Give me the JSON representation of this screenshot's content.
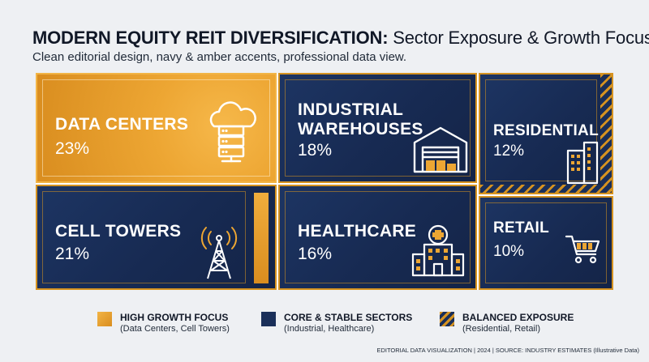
{
  "header": {
    "title_strong": "MODERN EQUITY REIT DIVERSIFICATION:",
    "title_rest": " Sector Exposure & Growth Focus",
    "subtitle": "Clean editorial design, navy & amber accents, professional data view."
  },
  "chart_data": {
    "type": "treemap",
    "title": "MODERN EQUITY REIT DIVERSIFICATION: Sector Exposure & Growth Focus",
    "unit": "%",
    "tiles": [
      {
        "label": "DATA CENTERS",
        "value_label": "23%",
        "value": 23,
        "group": "High Growth Focus",
        "icon": "cloud-server-icon"
      },
      {
        "label": "INDUSTRIAL\nWAREHOUSES",
        "value_label": "18%",
        "value": 18,
        "group": "Core & Stable Sectors",
        "icon": "warehouse-icon"
      },
      {
        "label": "RESIDENTIAL",
        "value_label": "12%",
        "value": 12,
        "group": "Balanced Exposure",
        "icon": "apartment-building-icon"
      },
      {
        "label": "CELL TOWERS",
        "value_label": "21%",
        "value": 21,
        "group": "High Growth Focus",
        "icon": "cell-tower-icon"
      },
      {
        "label": "HEALTHCARE",
        "value_label": "16%",
        "value": 16,
        "group": "Core & Stable Sectors",
        "icon": "hospital-icon"
      },
      {
        "label": "RETAIL",
        "value_label": "10%",
        "value": 10,
        "group": "Balanced Exposure",
        "icon": "shopping-cart-icon"
      }
    ],
    "colors": {
      "amber": "#eda633",
      "navy": "#1a2f59",
      "accent": "#d69320"
    }
  },
  "legend": [
    {
      "title": "HIGH GROWTH FOCUS",
      "sub": "(Data Centers, Cell Towers)",
      "swatch": "amber"
    },
    {
      "title": "CORE & STABLE SECTORS",
      "sub": "(Industrial, Healthcare)",
      "swatch": "navy"
    },
    {
      "title": "BALANCED EXPOSURE",
      "sub": "(Residential, Retail)",
      "swatch": "hatch"
    }
  ],
  "footer": "EDITORIAL DATA VISUALIZATION | 2024 | SOURCE: INDUSTRY ESTIMATES (Illustrative Data)"
}
